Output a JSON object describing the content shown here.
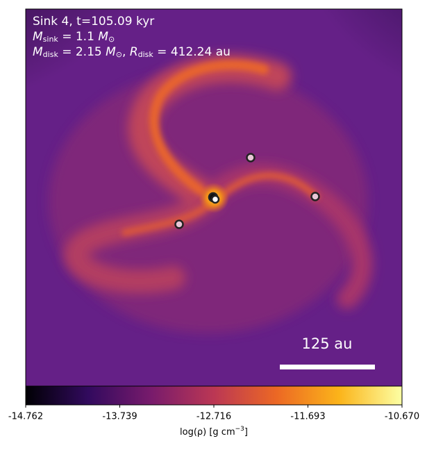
{
  "chart_data": {
    "type": "image",
    "annotations": {
      "line1": "Sink 4, t=105.09 kyr",
      "line2": [
        "M",
        "sink",
        " = 1.1 ",
        "M",
        "⊙"
      ],
      "line3": [
        "M",
        "disk",
        " = 2.15 ",
        "M",
        "⊙",
        ", ",
        "R",
        "disk",
        " = 412.24 au"
      ],
      "scale_bar": "125 au"
    },
    "colorbar": {
      "label": [
        "log(ρ) [g cm",
        "−3",
        "]"
      ],
      "clim": [
        -14.762,
        -10.67
      ],
      "ticks": [
        -14.762,
        -13.739,
        -12.716,
        -11.693,
        {
          "value": -10.67,
          "label": "-10.670"
        }
      ],
      "colormap": [
        "#000004",
        "#320a5e",
        "#781b6c",
        "#bb3754",
        "#ec6824",
        "#fbb41a",
        "#fcffa4"
      ]
    }
  }
}
